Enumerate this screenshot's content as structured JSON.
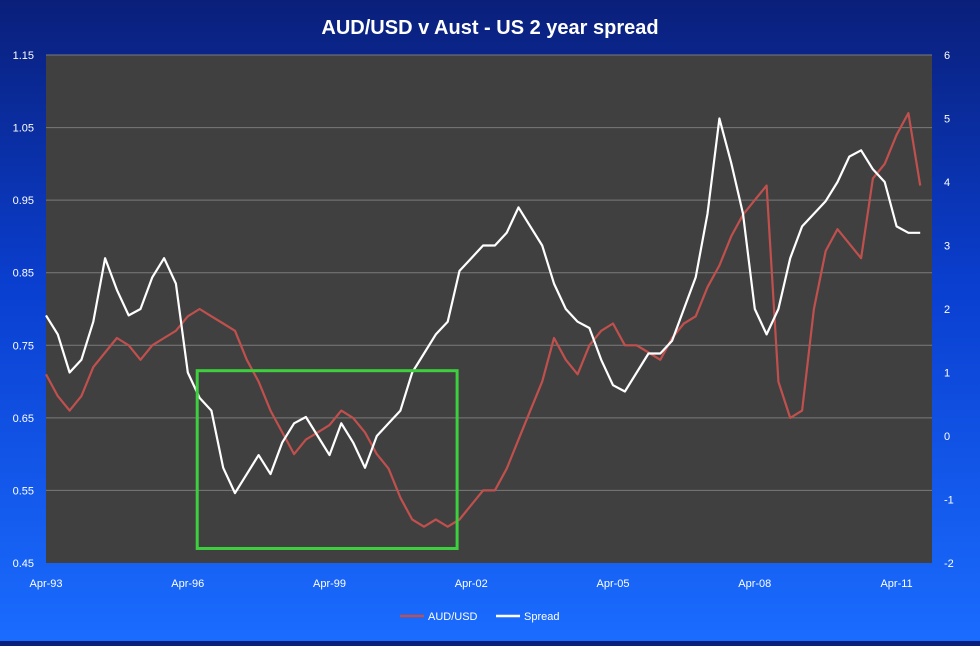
{
  "chart_data": {
    "type": "line",
    "title": "AUD/USD v Aust - US 2 year spread",
    "x_tick_labels": [
      "Apr-93",
      "Apr-96",
      "Apr-99",
      "Apr-02",
      "Apr-05",
      "Apr-08",
      "Apr-11"
    ],
    "x_ticks": [
      1993.25,
      1996.25,
      1999.25,
      2002.25,
      2005.25,
      2008.25,
      2011.25
    ],
    "xlim": [
      1993.25,
      2012.0
    ],
    "y_left": {
      "ylim": [
        0.45,
        1.15
      ],
      "tick_labels": [
        "0.45",
        "0.55",
        "0.65",
        "0.75",
        "0.85",
        "0.95",
        "1.05",
        "1.15"
      ]
    },
    "y_right": {
      "ylim": [
        -2,
        6
      ],
      "tick_labels": [
        "-2",
        "-1",
        "0",
        "1",
        "2",
        "3",
        "4",
        "5",
        "6"
      ]
    },
    "grid": "horizontal",
    "legend": "bottom-center",
    "series": [
      {
        "name": "AUD/USD",
        "axis": "left",
        "color": "#c0504d",
        "x": [
          1993.25,
          1993.5,
          1993.75,
          1994.0,
          1994.25,
          1994.5,
          1994.75,
          1995.0,
          1995.25,
          1995.5,
          1995.75,
          1996.0,
          1996.25,
          1996.5,
          1996.75,
          1997.0,
          1997.25,
          1997.5,
          1997.75,
          1998.0,
          1998.25,
          1998.5,
          1998.75,
          1999.0,
          1999.25,
          1999.5,
          1999.75,
          2000.0,
          2000.25,
          2000.5,
          2000.75,
          2001.0,
          2001.25,
          2001.5,
          2001.75,
          2002.0,
          2002.25,
          2002.5,
          2002.75,
          2003.0,
          2003.25,
          2003.5,
          2003.75,
          2004.0,
          2004.25,
          2004.5,
          2004.75,
          2005.0,
          2005.25,
          2005.5,
          2005.75,
          2006.0,
          2006.25,
          2006.5,
          2006.75,
          2007.0,
          2007.25,
          2007.5,
          2007.75,
          2008.0,
          2008.25,
          2008.5,
          2008.75,
          2009.0,
          2009.25,
          2009.5,
          2009.75,
          2010.0,
          2010.25,
          2010.5,
          2010.75,
          2011.0,
          2011.25,
          2011.5,
          2011.75
        ],
        "values": [
          0.71,
          0.68,
          0.66,
          0.68,
          0.72,
          0.74,
          0.76,
          0.75,
          0.73,
          0.75,
          0.76,
          0.77,
          0.79,
          0.8,
          0.79,
          0.78,
          0.77,
          0.73,
          0.7,
          0.66,
          0.63,
          0.6,
          0.62,
          0.63,
          0.64,
          0.66,
          0.65,
          0.63,
          0.6,
          0.58,
          0.54,
          0.51,
          0.5,
          0.51,
          0.5,
          0.51,
          0.53,
          0.55,
          0.55,
          0.58,
          0.62,
          0.66,
          0.7,
          0.76,
          0.73,
          0.71,
          0.75,
          0.77,
          0.78,
          0.75,
          0.75,
          0.74,
          0.73,
          0.76,
          0.78,
          0.79,
          0.83,
          0.86,
          0.9,
          0.93,
          0.95,
          0.97,
          0.7,
          0.65,
          0.66,
          0.8,
          0.88,
          0.91,
          0.89,
          0.87,
          0.98,
          1.0,
          1.04,
          1.07,
          0.97
        ]
      },
      {
        "name": "Spread",
        "axis": "right",
        "color": "#ffffff",
        "x": [
          1993.25,
          1993.5,
          1993.75,
          1994.0,
          1994.25,
          1994.5,
          1994.75,
          1995.0,
          1995.25,
          1995.5,
          1995.75,
          1996.0,
          1996.25,
          1996.5,
          1996.75,
          1997.0,
          1997.25,
          1997.5,
          1997.75,
          1998.0,
          1998.25,
          1998.5,
          1998.75,
          1999.0,
          1999.25,
          1999.5,
          1999.75,
          2000.0,
          2000.25,
          2000.5,
          2000.75,
          2001.0,
          2001.25,
          2001.5,
          2001.75,
          2002.0,
          2002.25,
          2002.5,
          2002.75,
          2003.0,
          2003.25,
          2003.5,
          2003.75,
          2004.0,
          2004.25,
          2004.5,
          2004.75,
          2005.0,
          2005.25,
          2005.5,
          2005.75,
          2006.0,
          2006.25,
          2006.5,
          2006.75,
          2007.0,
          2007.25,
          2007.5,
          2007.75,
          2008.0,
          2008.25,
          2008.5,
          2008.75,
          2009.0,
          2009.25,
          2009.5,
          2009.75,
          2010.0,
          2010.25,
          2010.5,
          2010.75,
          2011.0,
          2011.25,
          2011.5,
          2011.75
        ],
        "values": [
          1.9,
          1.6,
          1.0,
          1.2,
          1.8,
          2.8,
          2.3,
          1.9,
          2.0,
          2.5,
          2.8,
          2.4,
          1.0,
          0.6,
          0.4,
          -0.5,
          -0.9,
          -0.6,
          -0.3,
          -0.6,
          -0.1,
          0.2,
          0.3,
          0.0,
          -0.3,
          0.2,
          -0.1,
          -0.5,
          0.0,
          0.2,
          0.4,
          1.0,
          1.3,
          1.6,
          1.8,
          2.6,
          2.8,
          3.0,
          3.0,
          3.2,
          3.6,
          3.3,
          3.0,
          2.4,
          2.0,
          1.8,
          1.7,
          1.2,
          0.8,
          0.7,
          1.0,
          1.3,
          1.3,
          1.5,
          2.0,
          2.5,
          3.5,
          5.0,
          4.3,
          3.5,
          2.0,
          1.6,
          2.0,
          2.8,
          3.3,
          3.5,
          3.7,
          4.0,
          4.4,
          4.5,
          4.2,
          4.0,
          3.3,
          3.2,
          3.2
        ]
      }
    ],
    "annotation": {
      "type": "box",
      "x0": 1996.45,
      "x1": 2001.95,
      "y0_left": 0.47,
      "y1_left": 0.715,
      "color": "#3ecf3e"
    }
  }
}
